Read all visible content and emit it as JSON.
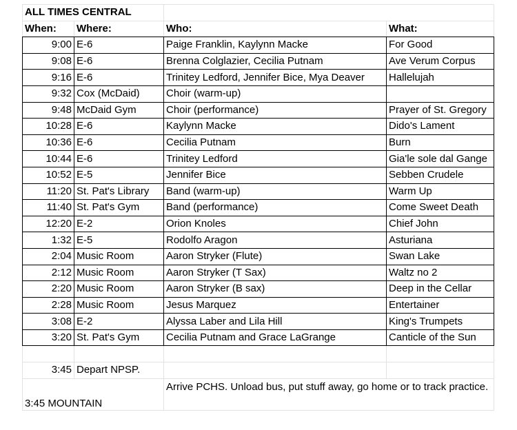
{
  "title": "ALL TIMES CENTRAL",
  "headers": {
    "when": "When:",
    "where": "Where:",
    "who": "Who:",
    "what": "What:"
  },
  "rows": [
    {
      "when": "9:00",
      "where": "E-6",
      "who": "Paige Franklin, Kaylynn Macke",
      "what": "For Good"
    },
    {
      "when": "9:08",
      "where": "E-6",
      "who": "Brenna Colglazier, Cecilia Putnam",
      "what": "Ave Verum Corpus"
    },
    {
      "when": "9:16",
      "where": "E-6",
      "who": "Trinitey Ledford, Jennifer Bice, Mya Deaver",
      "what": "Hallelujah"
    },
    {
      "when": "9:32",
      "where": "Cox (McDaid)",
      "who": "Choir (warm-up)",
      "what": ""
    },
    {
      "when": "9:48",
      "where": "McDaid Gym",
      "who": "Choir (performance)",
      "what": "Prayer of St. Gregory"
    },
    {
      "when": "10:28",
      "where": "E-6",
      "who": "Kaylynn Macke",
      "what": "Dido's Lament"
    },
    {
      "when": "10:36",
      "where": "E-6",
      "who": "Cecilia Putnam",
      "what": "Burn"
    },
    {
      "when": "10:44",
      "where": "E-6",
      "who": "Trinitey Ledford",
      "what": "Gia'le sole dal Gange"
    },
    {
      "when": "10:52",
      "where": "E-5",
      "who": "Jennifer Bice",
      "what": "Sebben Crudele"
    },
    {
      "when": "11:20",
      "where": "St. Pat's Library",
      "who": "Band (warm-up)",
      "what": "Warm Up"
    },
    {
      "when": "11:40",
      "where": "St. Pat's Gym",
      "who": "Band (performance)",
      "what": "Come Sweet Death"
    },
    {
      "when": "12:20",
      "where": "E-2",
      "who": "Orion Knoles",
      "what": "Chief John"
    },
    {
      "when": "1:32",
      "where": "E-5",
      "who": "Rodolfo Aragon",
      "what": "Asturiana"
    },
    {
      "when": "2:04",
      "where": "Music Room",
      "who": "Aaron Stryker (Flute)",
      "what": "Swan Lake"
    },
    {
      "when": "2:12",
      "where": "Music Room",
      "who": "Aaron Stryker (T Sax)",
      "what": "Waltz no 2"
    },
    {
      "when": "2:20",
      "where": "Music Room",
      "who": "Aaron Stryker (B sax)",
      "what": "Deep in the Cellar"
    },
    {
      "when": "2:28",
      "where": "Music Room",
      "who": "Jesus Marquez",
      "what": "Entertainer"
    },
    {
      "when": "3:08",
      "where": "E-2",
      "who": "Alyssa Laber and Lila Hill",
      "what": "King's Trumpets"
    },
    {
      "when": "3:20",
      "where": "St. Pat's Gym",
      "who": "Cecilia Putnam and Grace LaGrange",
      "what": "Canticle of the Sun"
    }
  ],
  "depart": {
    "when": "3:45",
    "where": "Depart NPSP."
  },
  "arrive": {
    "when": "3:45 MOUNTAIN",
    "text": "Arrive PCHS. Unload bus, put stuff away, go home or to track practice."
  }
}
